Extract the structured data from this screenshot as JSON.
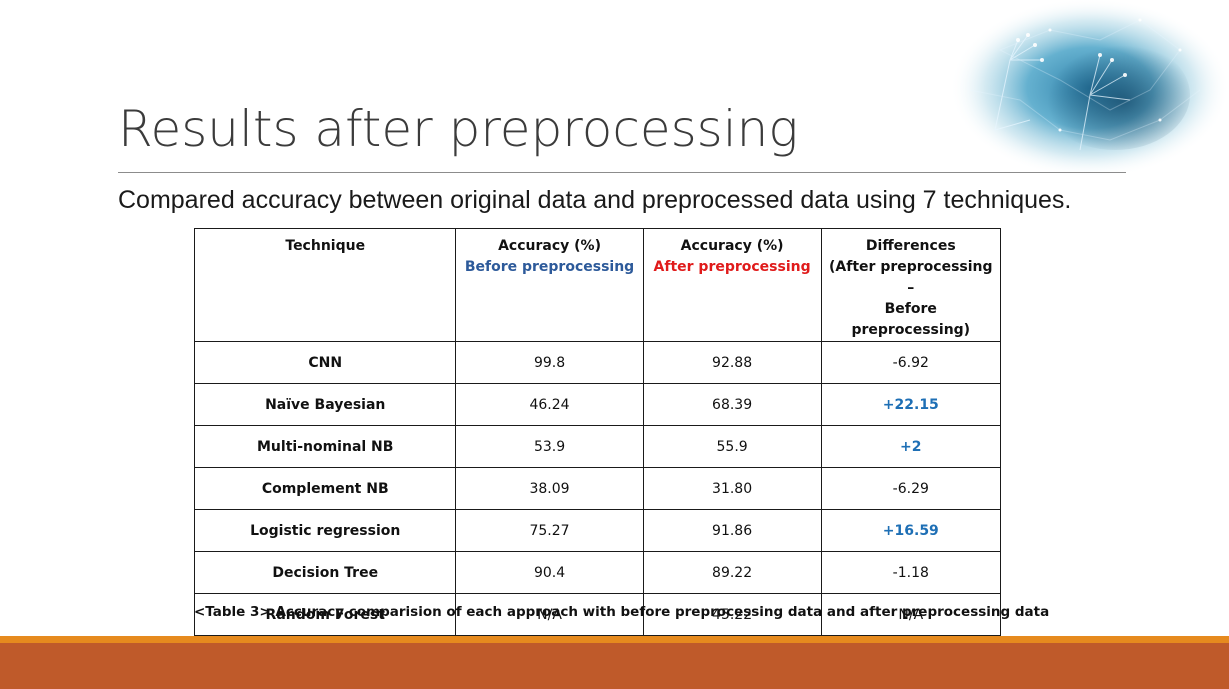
{
  "slide": {
    "title": "Results after preprocessing",
    "subtitle": "Compared accuracy between original data and preprocessed data using 7 techniques.",
    "decoration_icon": "hands-network-image"
  },
  "table": {
    "headers": {
      "technique": "Technique",
      "acc_before_line1": "Accuracy (%)",
      "acc_before_line2": "Before preprocessing",
      "acc_after_line1": "Accuracy (%)",
      "acc_after_line2": "After preprocessing",
      "diff_line1": "Differences",
      "diff_line2": "(After preprocessing –",
      "diff_line3": "Before preprocessing)"
    },
    "rows": [
      {
        "technique": "CNN",
        "before": "99.8",
        "after": "92.88",
        "diff": "-6.92",
        "diff_positive": false
      },
      {
        "technique": "Naïve Bayesian",
        "before": "46.24",
        "after": "68.39",
        "diff": "+22.15",
        "diff_positive": true
      },
      {
        "technique": "Multi-nominal NB",
        "before": "53.9",
        "after": "55.9",
        "diff": "+2",
        "diff_positive": true
      },
      {
        "technique": "Complement NB",
        "before": "38.09",
        "after": "31.80",
        "diff": "-6.29",
        "diff_positive": false
      },
      {
        "technique": "Logistic regression",
        "before": "75.27",
        "after": "91.86",
        "diff": "+16.59",
        "diff_positive": true
      },
      {
        "technique": "Decision Tree",
        "before": "90.4",
        "after": "89.22",
        "diff": "-1.18",
        "diff_positive": false
      },
      {
        "technique": "Random Forest",
        "before": "N/A",
        "after": "45.22",
        "diff": "N/A",
        "diff_positive": false
      }
    ]
  },
  "caption": "<Table 3> Accuracy comparision of each approach with before preprocessing data and after preprocessing data",
  "colors": {
    "before_label": "#2d5a9a",
    "after_label": "#e01b1b",
    "positive_diff": "#1e6fb5",
    "footer_thin": "#e68a1e",
    "footer_thick": "#bf5a2a"
  }
}
